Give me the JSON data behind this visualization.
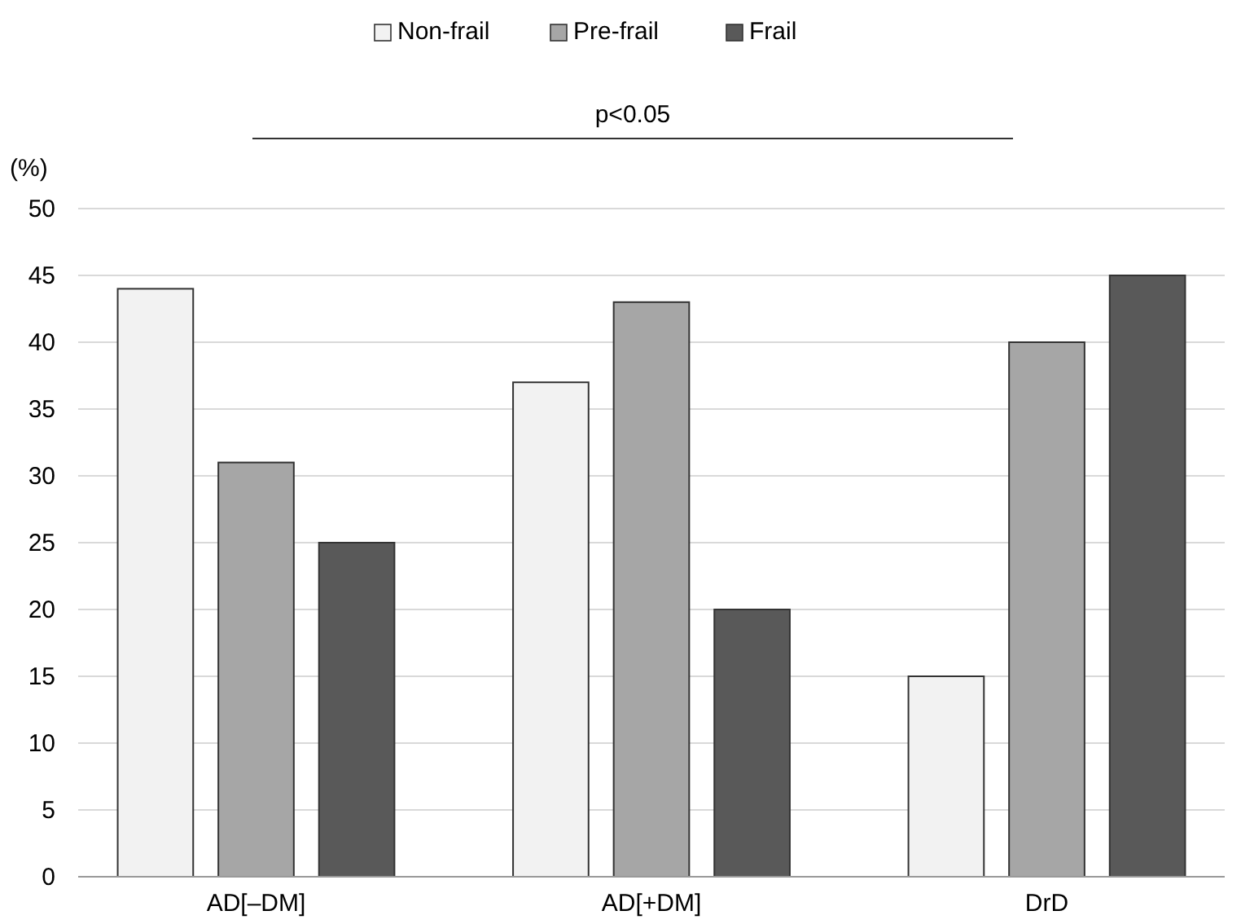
{
  "chart_data": {
    "type": "bar",
    "ylabel": "(%)",
    "categories": [
      "AD[–DM]",
      "AD[+DM]",
      "DrD"
    ],
    "series": [
      {
        "name": "Non-frail",
        "color": "#f2f2f2",
        "values": [
          44,
          37,
          15
        ]
      },
      {
        "name": "Pre-frail",
        "color": "#a6a6a6",
        "values": [
          31,
          43,
          40
        ]
      },
      {
        "name": "Frail",
        "color": "#595959",
        "values": [
          25,
          20,
          45
        ]
      }
    ],
    "ylim": [
      0,
      50
    ],
    "yticks": [
      0,
      5,
      10,
      15,
      20,
      25,
      30,
      35,
      40,
      45,
      50
    ],
    "grid": "y",
    "legend": "top",
    "annotations": [
      "p<0.05"
    ]
  }
}
